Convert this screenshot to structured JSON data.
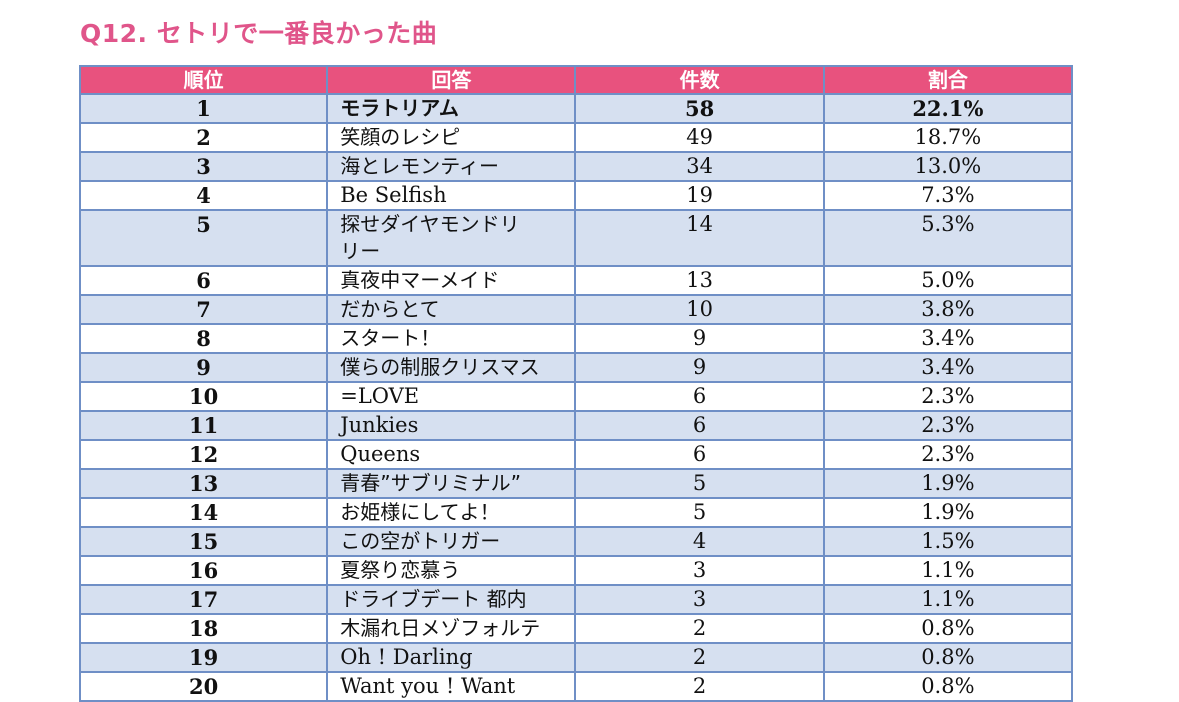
{
  "title": "Q12. セトリで一番良かった曲",
  "headers": {
    "rank": "順位",
    "answer": "回答",
    "count": "件数",
    "ratio": "割合"
  },
  "rows": [
    {
      "rank": "1",
      "song": "モラトリアム",
      "count": "58",
      "pct": "22.1%"
    },
    {
      "rank": "2",
      "song": "笑顔のレシピ",
      "count": "49",
      "pct": "18.7%"
    },
    {
      "rank": "3",
      "song": "海とレモンティー",
      "count": "34",
      "pct": "13.0%"
    },
    {
      "rank": "4",
      "song": "Be Selfish",
      "count": "19",
      "pct": "7.3%"
    },
    {
      "rank": "5",
      "song_line1": "探せダイヤモンドリ",
      "song_line2": "リー",
      "count": "14",
      "pct": "5.3%"
    },
    {
      "rank": "6",
      "song": "真夜中マーメイド",
      "count": "13",
      "pct": "5.0%"
    },
    {
      "rank": "7",
      "song": "だからとて",
      "count": "10",
      "pct": "3.8%"
    },
    {
      "rank": "8",
      "song": "スタート！",
      "count": "9",
      "pct": "3.4%"
    },
    {
      "rank": "9",
      "song": "僕らの制服クリスマス",
      "count": "9",
      "pct": "3.4%"
    },
    {
      "rank": "10",
      "song": "=LOVE",
      "count": "6",
      "pct": "2.3%"
    },
    {
      "rank": "11",
      "song": "Junkies",
      "count": "6",
      "pct": "2.3%"
    },
    {
      "rank": "12",
      "song": "Queens",
      "count": "6",
      "pct": "2.3%"
    },
    {
      "rank": "13",
      "song": "青春”サブリミナル”",
      "count": "5",
      "pct": "1.9%"
    },
    {
      "rank": "14",
      "song": "お姫様にしてよ！",
      "count": "5",
      "pct": "1.9%"
    },
    {
      "rank": "15",
      "song": "この空がトリガー",
      "count": "4",
      "pct": "1.5%"
    },
    {
      "rank": "16",
      "song": "夏祭り恋慕う",
      "count": "3",
      "pct": "1.1%"
    },
    {
      "rank": "17",
      "song": "ドライブデート 都内",
      "count": "3",
      "pct": "1.1%"
    },
    {
      "rank": "18",
      "song": "木漏れ日メゾフォルテ",
      "count": "2",
      "pct": "0.8%"
    },
    {
      "rank": "19",
      "song": "Oh ! Darling",
      "count": "2",
      "pct": "0.8%"
    },
    {
      "rank": "20",
      "song": "Want you ! Want",
      "count": "2",
      "pct": "0.8%"
    }
  ],
  "colors": {
    "title": "#e0558a",
    "header_bg": "#e8527e",
    "row_shade": "#d6e0f0",
    "border": "#6f8fc6"
  }
}
